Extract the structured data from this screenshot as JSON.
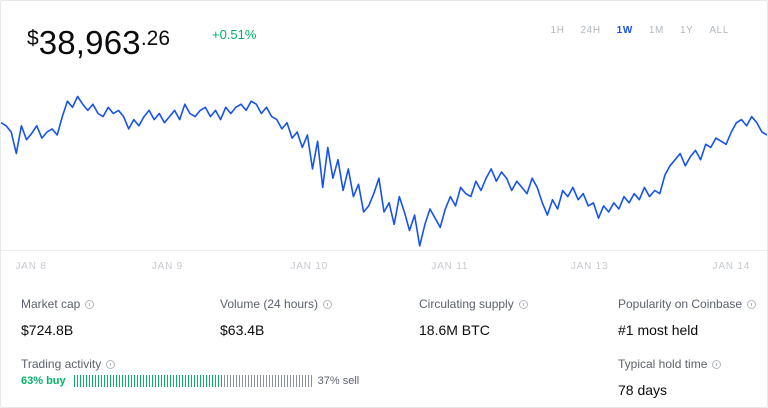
{
  "price": {
    "currency": "$",
    "integer": "38,963",
    "decimal": ".26",
    "change": "+0.51%"
  },
  "periods": [
    {
      "label": "1H",
      "active": false
    },
    {
      "label": "24H",
      "active": false
    },
    {
      "label": "1W",
      "active": true
    },
    {
      "label": "1M",
      "active": false
    },
    {
      "label": "1Y",
      "active": false
    },
    {
      "label": "ALL",
      "active": false
    }
  ],
  "chart": {
    "line_color": "#1652f0",
    "x_labels": [
      "JAN 8",
      "JAN 9",
      "JAN 10",
      "JAN 11",
      "JAN 13",
      "JAN 14"
    ],
    "values": [
      0.82,
      0.8,
      0.76,
      0.62,
      0.8,
      0.71,
      0.75,
      0.8,
      0.72,
      0.76,
      0.78,
      0.74,
      0.86,
      0.96,
      0.92,
      0.99,
      0.94,
      0.9,
      0.94,
      0.88,
      0.86,
      0.92,
      0.88,
      0.9,
      0.86,
      0.78,
      0.84,
      0.8,
      0.86,
      0.9,
      0.84,
      0.88,
      0.82,
      0.86,
      0.9,
      0.84,
      0.94,
      0.88,
      0.86,
      0.9,
      0.92,
      0.86,
      0.9,
      0.84,
      0.92,
      0.88,
      0.92,
      0.94,
      0.9,
      0.96,
      0.94,
      0.88,
      0.92,
      0.86,
      0.84,
      0.78,
      0.82,
      0.72,
      0.76,
      0.66,
      0.74,
      0.52,
      0.7,
      0.4,
      0.66,
      0.46,
      0.58,
      0.38,
      0.52,
      0.34,
      0.42,
      0.24,
      0.28,
      0.36,
      0.46,
      0.24,
      0.3,
      0.16,
      0.34,
      0.24,
      0.12,
      0.22,
      0.02,
      0.16,
      0.26,
      0.2,
      0.14,
      0.26,
      0.34,
      0.28,
      0.4,
      0.36,
      0.34,
      0.44,
      0.38,
      0.46,
      0.52,
      0.44,
      0.5,
      0.46,
      0.38,
      0.44,
      0.4,
      0.36,
      0.46,
      0.4,
      0.3,
      0.22,
      0.32,
      0.26,
      0.38,
      0.34,
      0.4,
      0.32,
      0.36,
      0.28,
      0.3,
      0.2,
      0.28,
      0.24,
      0.3,
      0.26,
      0.34,
      0.3,
      0.36,
      0.32,
      0.4,
      0.34,
      0.38,
      0.36,
      0.48,
      0.54,
      0.58,
      0.62,
      0.54,
      0.6,
      0.64,
      0.58,
      0.68,
      0.66,
      0.72,
      0.7,
      0.68,
      0.76,
      0.82,
      0.84,
      0.8,
      0.86,
      0.82,
      0.76,
      0.74
    ],
    "x_label_positions": [
      0.045,
      0.223,
      0.404,
      0.588,
      0.77,
      0.955
    ]
  },
  "stats": {
    "market_cap": {
      "label": "Market cap",
      "value": "$724.8B"
    },
    "volume": {
      "label": "Volume (24 hours)",
      "value": "$63.4B"
    },
    "supply": {
      "label": "Circulating supply",
      "value": "18.6M BTC"
    },
    "popularity": {
      "label": "Popularity on Coinbase",
      "value": "#1 most held"
    },
    "activity": {
      "label": "Trading activity",
      "buy": "63% buy",
      "sell": "37% sell",
      "buy_fraction": 0.63
    },
    "hold_time": {
      "label": "Typical hold time",
      "value": "78 days"
    }
  },
  "colors": {
    "buy": "#05b169",
    "sell": "#5b616e",
    "accent": "#1652f0"
  }
}
